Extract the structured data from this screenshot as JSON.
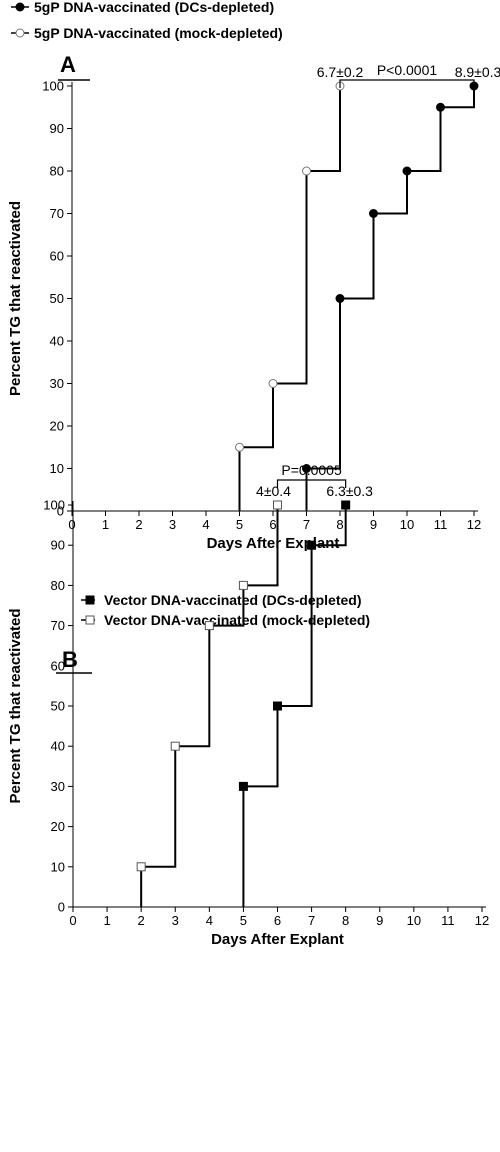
{
  "chart_data": [
    {
      "type": "line",
      "panel_label": "A",
      "xlabel": "Days After Explant",
      "ylabel": "Percent TG that reactivated",
      "xlim": [
        0,
        12
      ],
      "ylim": [
        0,
        100
      ],
      "x_ticks": [
        0,
        1,
        2,
        3,
        4,
        5,
        6,
        7,
        8,
        9,
        10,
        11,
        12
      ],
      "y_ticks": [
        0,
        10,
        20,
        30,
        40,
        50,
        60,
        70,
        80,
        90,
        100
      ],
      "step": true,
      "legend_position": "top-left",
      "series": [
        {
          "name": "5gP DNA-vaccinated (DCs-depleted)",
          "marker": "filled-circle",
          "x": [
            7,
            8,
            9,
            10,
            11,
            12
          ],
          "y": [
            10,
            50,
            70,
            80,
            95,
            100
          ],
          "annotation": "8.9±0.3"
        },
        {
          "name": "5gP DNA-vaccinated (mock-depleted)",
          "marker": "open-circle",
          "x": [
            5,
            6,
            7,
            8
          ],
          "y": [
            15,
            30,
            80,
            100
          ],
          "annotation": "6.7±0.2"
        }
      ],
      "significance": {
        "label": "P<0.0001",
        "from_x": 8,
        "to_x": 12
      }
    },
    {
      "type": "line",
      "panel_label": "B",
      "xlabel": "Days After Explant",
      "ylabel": "Percent TG that reactivated",
      "xlim": [
        0,
        12
      ],
      "ylim": [
        0,
        100
      ],
      "x_ticks": [
        0,
        1,
        2,
        3,
        4,
        5,
        6,
        7,
        8,
        9,
        10,
        11,
        12
      ],
      "y_ticks": [
        0,
        10,
        20,
        30,
        40,
        50,
        60,
        70,
        80,
        90,
        100
      ],
      "step": true,
      "legend_position": "top-center",
      "series": [
        {
          "name": "Vector DNA-vaccinated (DCs-depleted)",
          "marker": "filled-square",
          "x": [
            5,
            6,
            7,
            8
          ],
          "y": [
            30,
            50,
            90,
            100
          ],
          "annotation": "6.3±0.3"
        },
        {
          "name": "Vector DNA-vaccinated (mock-depleted)",
          "marker": "open-square",
          "x": [
            2,
            3,
            4,
            5,
            6
          ],
          "y": [
            10,
            40,
            70,
            80,
            100
          ],
          "annotation": "4±0.4"
        }
      ],
      "significance": {
        "label": "P=0.0005",
        "from_x": 6,
        "to_x": 8
      }
    }
  ]
}
